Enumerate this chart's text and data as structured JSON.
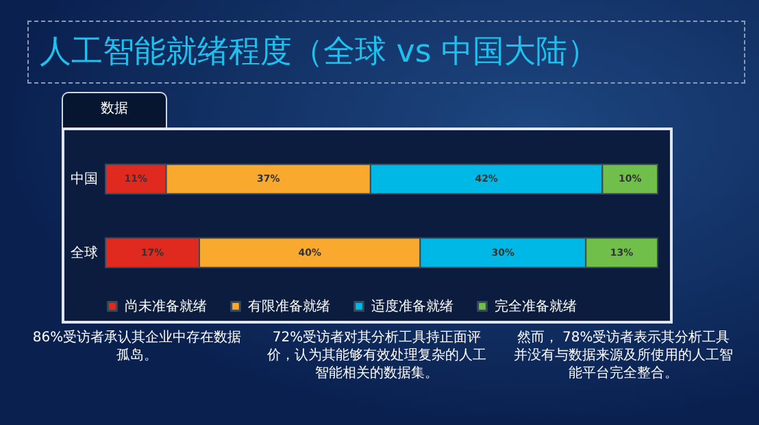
{
  "chart_data": {
    "type": "bar",
    "orientation": "horizontal",
    "stacked": true,
    "title": "人工智能就绪程度（全球 vs 中国大陆）",
    "subtitle": "数据",
    "categories": [
      "中国",
      "全球"
    ],
    "series": [
      {
        "name": "尚未准备就绪",
        "color": "#e02a1f",
        "values": [
          11,
          17
        ],
        "value_labels": [
          "11%",
          "17%"
        ]
      },
      {
        "name": "有限准备就绪",
        "color": "#f8a92e",
        "values": [
          37,
          40
        ],
        "value_labels": [
          "37%",
          "40%"
        ]
      },
      {
        "name": "适度准备就绪",
        "color": "#00b8e6",
        "values": [
          42,
          30
        ],
        "value_labels": [
          "42%",
          "30%"
        ]
      },
      {
        "name": "完全准备就绪",
        "color": "#71bf4b",
        "values": [
          10,
          13
        ],
        "value_labels": [
          "10%",
          "13%"
        ]
      }
    ],
    "legend": "bottom",
    "annotations": [
      "86%受访者承认其企业中存在数据孤岛。",
      "72%受访者对其分析工具持正面评价，认为其能够有效处理复杂的人工智能相关的数据集。",
      "然而， 78%受访者表示其分析工具并没有与数据来源及所使用的人工智能平台完全整合。"
    ]
  }
}
